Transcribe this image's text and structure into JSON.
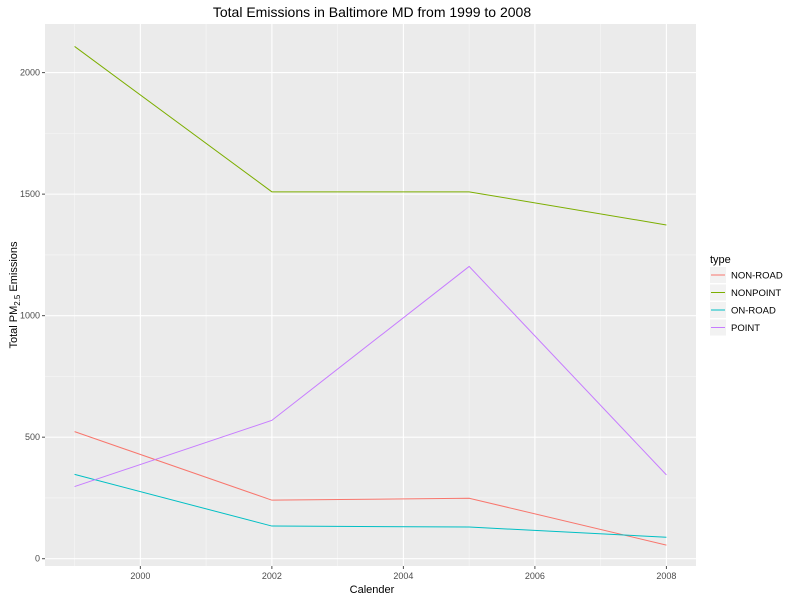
{
  "chart_data": {
    "type": "line",
    "title": "Total Emissions in Baltimore MD from 1999 to 2008",
    "xlabel": "Calender",
    "ylabel": {
      "prefix": "Total PM",
      "subscript": "2.5",
      "suffix": " Emissions"
    },
    "x": [
      1999,
      2002,
      2005,
      2008
    ],
    "xlim": [
      1998.55,
      2008.45
    ],
    "ylim": [
      -30,
      2200
    ],
    "xticks": [
      2000,
      2002,
      2004,
      2006,
      2008
    ],
    "yticks": [
      0,
      500,
      1000,
      1500,
      2000
    ],
    "grid": true,
    "legend_title": "type",
    "legend_position": "right",
    "series": [
      {
        "name": "NON-ROAD",
        "color": "#F8766D",
        "values": [
          522.94,
          240.85,
          248.93,
          55.82
        ]
      },
      {
        "name": "NONPOINT",
        "color": "#7CAE00",
        "values": [
          2107.6,
          1509.5,
          1509.5,
          1373.21
        ]
      },
      {
        "name": "ON-ROAD",
        "color": "#00BFC4",
        "values": [
          346.82,
          134.31,
          130.43,
          88.28
        ]
      },
      {
        "name": "POINT",
        "color": "#C77CFF",
        "values": [
          296.8,
          569.26,
          1202.49,
          344.98
        ]
      }
    ]
  }
}
